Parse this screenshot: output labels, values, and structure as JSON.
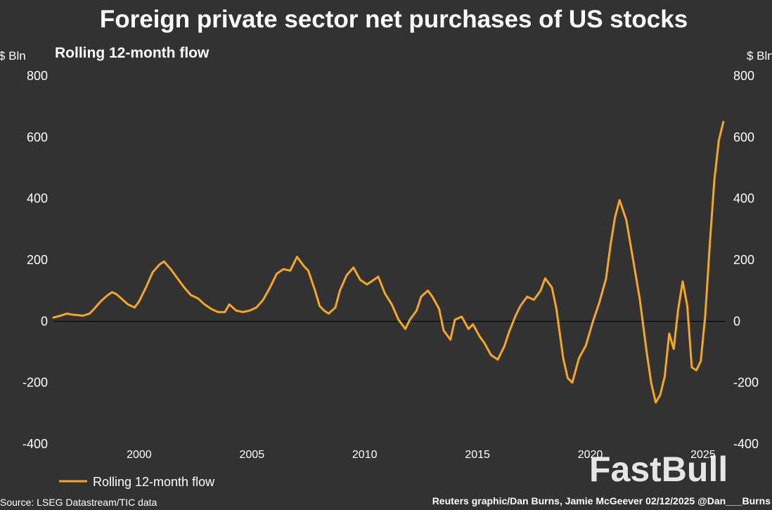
{
  "watermark": "FastBull",
  "colors": {
    "background": "#323232",
    "series": "#f5a623",
    "zero_line": "#000000",
    "text": "#ffffff"
  },
  "chart_data": {
    "type": "line",
    "title": "Foreign private sector net purchases of US stocks",
    "subtitle": "Rolling 12-month flow",
    "ylabel_left": "$ Bln",
    "ylabel_right": "$ Bln",
    "ylim": [
      -400,
      800
    ],
    "yticks": [
      "800",
      "600",
      "400",
      "200",
      "0",
      "-200",
      "-400"
    ],
    "xlim": [
      1996.2,
      2026.0
    ],
    "xticks": [
      "2000",
      "2005",
      "2010",
      "2015",
      "2020",
      "2025"
    ],
    "legend": "Rolling 12-month flow",
    "source": "Source: LSEG Datastream/TIC data",
    "credit": "Reuters graphic/Dan Burns, Jamie McGeever 02/12/2025 @Dan___Burns",
    "series": [
      {
        "name": "Rolling 12-month flow",
        "x": [
          1996.2,
          1996.5,
          1996.8,
          1997.0,
          1997.3,
          1997.5,
          1997.8,
          1998.0,
          1998.3,
          1998.6,
          1998.8,
          1999.0,
          1999.2,
          1999.5,
          1999.8,
          2000.0,
          2000.3,
          2000.6,
          2000.9,
          2001.1,
          2001.4,
          2001.7,
          2002.0,
          2002.3,
          2002.6,
          2002.9,
          2003.2,
          2003.5,
          2003.8,
          2004.0,
          2004.3,
          2004.6,
          2004.9,
          2005.2,
          2005.5,
          2005.8,
          2006.1,
          2006.4,
          2006.7,
          2007.0,
          2007.3,
          2007.5,
          2007.8,
          2008.0,
          2008.2,
          2008.4,
          2008.7,
          2008.9,
          2009.2,
          2009.5,
          2009.8,
          2010.1,
          2010.3,
          2010.6,
          2010.9,
          2011.2,
          2011.5,
          2011.8,
          2012.0,
          2012.3,
          2012.5,
          2012.8,
          2013.0,
          2013.3,
          2013.5,
          2013.8,
          2014.0,
          2014.3,
          2014.6,
          2014.8,
          2015.1,
          2015.3,
          2015.6,
          2015.9,
          2016.2,
          2016.4,
          2016.7,
          2016.9,
          2017.2,
          2017.5,
          2017.8,
          2018.0,
          2018.3,
          2018.5,
          2018.8,
          2019.0,
          2019.2,
          2019.5,
          2019.8,
          2020.1,
          2020.4,
          2020.7,
          2020.9,
          2021.1,
          2021.3,
          2021.6,
          2021.9,
          2022.2,
          2022.5,
          2022.7,
          2022.9,
          2023.1,
          2023.3,
          2023.5,
          2023.7,
          2023.9,
          2024.1,
          2024.3,
          2024.5,
          2024.7,
          2024.9,
          2025.1,
          2025.3,
          2025.5,
          2025.7,
          2025.9
        ],
        "values": [
          12,
          18,
          25,
          22,
          20,
          18,
          25,
          40,
          65,
          85,
          95,
          88,
          75,
          55,
          45,
          65,
          110,
          160,
          185,
          195,
          170,
          140,
          110,
          85,
          75,
          55,
          40,
          30,
          30,
          55,
          35,
          30,
          35,
          45,
          70,
          110,
          155,
          170,
          165,
          210,
          180,
          165,
          100,
          50,
          35,
          25,
          45,
          100,
          150,
          175,
          135,
          120,
          130,
          145,
          90,
          55,
          5,
          -25,
          5,
          35,
          80,
          100,
          80,
          40,
          -30,
          -60,
          5,
          15,
          -25,
          -10,
          -50,
          -70,
          -110,
          -125,
          -80,
          -35,
          20,
          50,
          80,
          70,
          100,
          140,
          110,
          40,
          -120,
          -185,
          -200,
          -120,
          -80,
          -5,
          60,
          140,
          250,
          340,
          395,
          330,
          200,
          70,
          -100,
          -200,
          -265,
          -240,
          -180,
          -40,
          -90,
          40,
          130,
          50,
          -150,
          -160,
          -130,
          20,
          250,
          460,
          590,
          650
        ]
      }
    ]
  }
}
